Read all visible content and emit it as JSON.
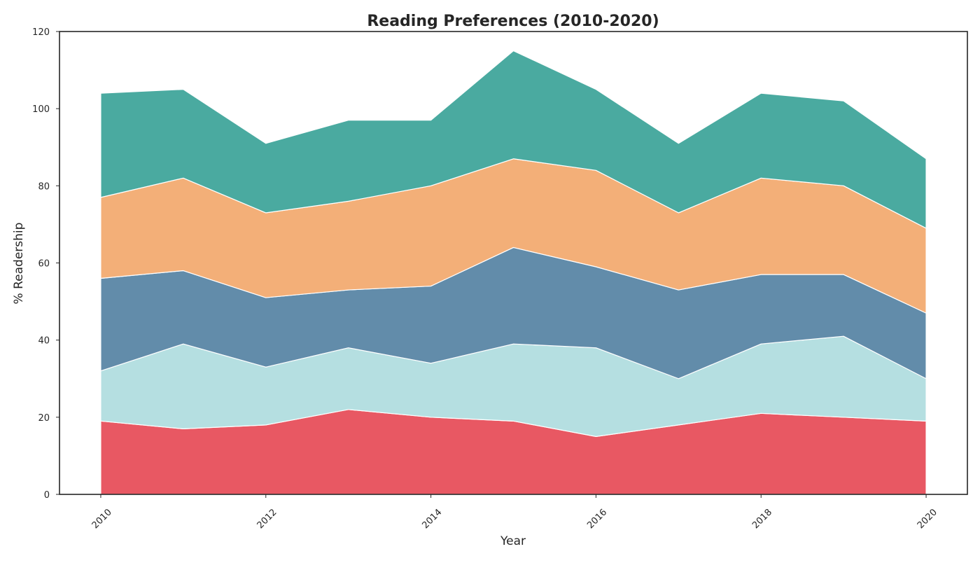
{
  "chart_data": {
    "type": "area",
    "stacked": true,
    "title": "Reading Preferences (2010-2020)",
    "xlabel": "Year",
    "ylabel": "% Readership",
    "x": [
      2010,
      2011,
      2012,
      2013,
      2014,
      2015,
      2016,
      2017,
      2018,
      2019,
      2020
    ],
    "xlim": [
      2009.5,
      2020.5
    ],
    "ylim": [
      0,
      120
    ],
    "x_ticks": [
      "2010",
      "2012",
      "2014",
      "2016",
      "2018",
      "2020"
    ],
    "y_ticks": [
      "0",
      "20",
      "40",
      "60",
      "80",
      "100",
      "120"
    ],
    "grid": false,
    "legend": "none",
    "series": [
      {
        "color": "#e85863",
        "values": [
          19,
          17,
          18,
          22,
          20,
          19,
          15,
          18,
          21,
          20,
          19
        ]
      },
      {
        "color": "#b5dfe1",
        "values": [
          13,
          22,
          15,
          16,
          14,
          20,
          23,
          12,
          18,
          21,
          11
        ]
      },
      {
        "color": "#628caa",
        "values": [
          24,
          19,
          18,
          15,
          20,
          25,
          21,
          23,
          18,
          16,
          17
        ]
      },
      {
        "color": "#f3af78",
        "values": [
          21,
          24,
          22,
          23,
          26,
          23,
          25,
          20,
          25,
          23,
          22
        ]
      },
      {
        "color": "#4aaaa0",
        "values": [
          27,
          23,
          18,
          21,
          17,
          28,
          21,
          18,
          22,
          22,
          18
        ]
      }
    ]
  }
}
